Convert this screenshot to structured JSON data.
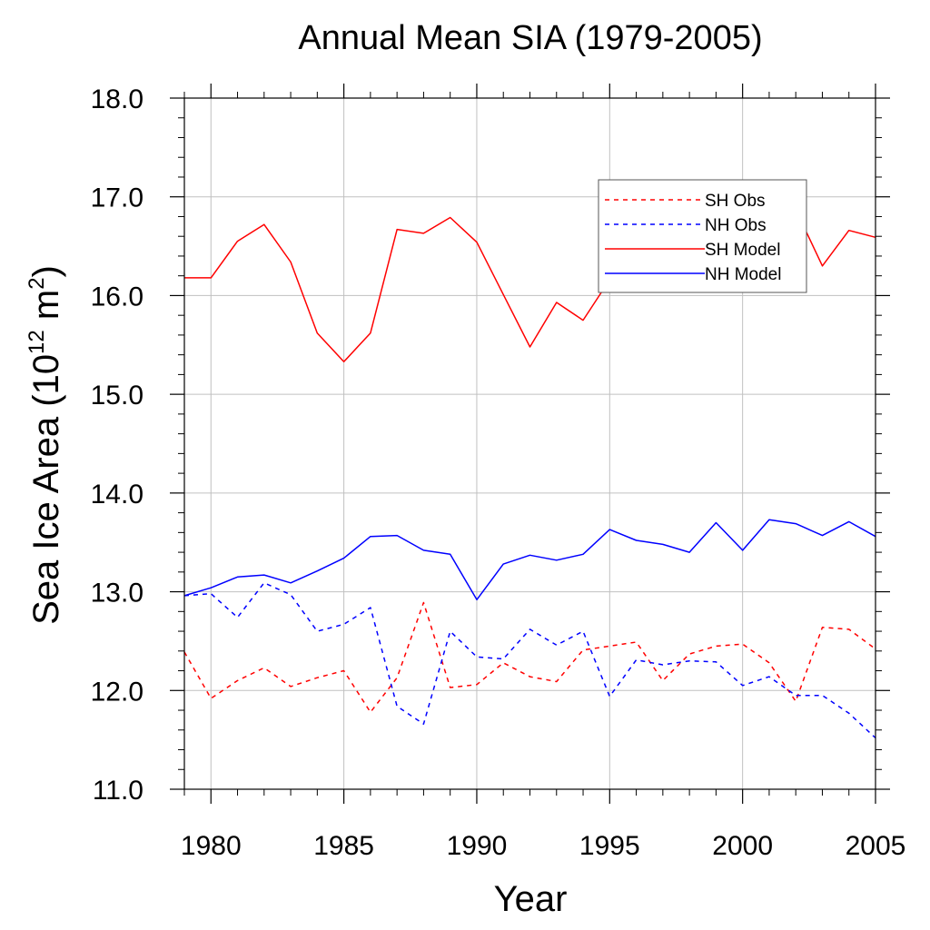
{
  "chart_data": {
    "type": "line",
    "title": "Annual Mean SIA (1979-2005)",
    "xlabel": "Year",
    "ylabel_parts": {
      "main": "Sea Ice Area (10",
      "exp1": "12",
      "mid": " m",
      "exp2": "2",
      "end": ")"
    },
    "xlim": [
      1979,
      2005
    ],
    "ylim": [
      11.0,
      18.0
    ],
    "x_ticks": [
      1980,
      1985,
      1990,
      1995,
      2000,
      2005
    ],
    "x_tick_labels": [
      "1980",
      "1985",
      "1990",
      "1995",
      "2000",
      "2005"
    ],
    "y_ticks": [
      11.0,
      12.0,
      13.0,
      14.0,
      15.0,
      16.0,
      17.0,
      18.0
    ],
    "y_tick_labels": [
      "11.0",
      "12.0",
      "13.0",
      "14.0",
      "15.0",
      "16.0",
      "17.0",
      "18.0"
    ],
    "grid": true,
    "legend_position": "top-right",
    "x": [
      1979,
      1980,
      1981,
      1982,
      1983,
      1984,
      1985,
      1986,
      1987,
      1988,
      1989,
      1990,
      1991,
      1992,
      1993,
      1994,
      1995,
      1996,
      1997,
      1998,
      1999,
      2000,
      2001,
      2002,
      2003,
      2004,
      2005
    ],
    "series": [
      {
        "name": "SH Obs",
        "color": "#ff0000",
        "dash": "dashed",
        "values": [
          12.39,
          11.92,
          12.1,
          12.23,
          12.04,
          12.13,
          12.2,
          11.78,
          12.13,
          12.89,
          12.03,
          12.06,
          12.28,
          12.14,
          12.09,
          12.41,
          12.45,
          12.49,
          12.1,
          12.37,
          12.45,
          12.47,
          12.28,
          11.89,
          12.64,
          12.62,
          12.42
        ]
      },
      {
        "name": "NH Obs",
        "color": "#0000ff",
        "dash": "dashed",
        "values": [
          12.96,
          12.98,
          12.74,
          13.09,
          12.97,
          12.6,
          12.67,
          12.84,
          11.84,
          11.66,
          12.6,
          12.34,
          12.32,
          12.62,
          12.46,
          12.6,
          11.94,
          12.31,
          12.26,
          12.3,
          12.29,
          12.05,
          12.14,
          11.95,
          11.95,
          11.77,
          11.52
        ]
      },
      {
        "name": "SH Model",
        "color": "#ff0000",
        "dash": "solid",
        "values": [
          16.18,
          16.18,
          16.55,
          16.72,
          16.34,
          15.62,
          15.33,
          15.62,
          16.67,
          16.63,
          16.79,
          16.54,
          16.01,
          15.48,
          15.93,
          15.75,
          16.16,
          16.49,
          16.3,
          16.32,
          16.4,
          16.34,
          17.03,
          16.87,
          16.3,
          16.66,
          16.59
        ]
      },
      {
        "name": "NH Model",
        "color": "#0000ff",
        "dash": "solid",
        "values": [
          12.96,
          13.04,
          13.15,
          13.17,
          13.09,
          13.21,
          13.34,
          13.56,
          13.57,
          13.42,
          13.38,
          12.92,
          13.28,
          13.37,
          13.32,
          13.38,
          13.63,
          13.52,
          13.48,
          13.4,
          13.7,
          13.42,
          13.73,
          13.69,
          13.57,
          13.71,
          13.56
        ]
      }
    ]
  }
}
